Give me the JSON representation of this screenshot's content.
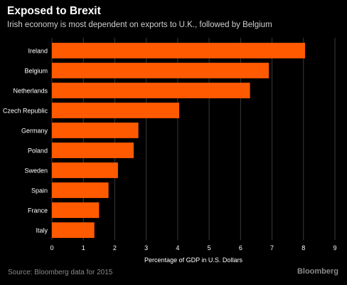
{
  "header": {
    "title": "Exposed to Brexit",
    "subtitle": "Irish economy is most dependent on exports to U.K., followed by Belgium"
  },
  "footer": {
    "source": "Source: Bloomberg data for 2015",
    "brand": "Bloomberg"
  },
  "colors": {
    "bar": "#ff5a00",
    "background": "#000000",
    "gridline": "#3a3a3a",
    "text": "#ffffff"
  },
  "chart_data": {
    "type": "bar",
    "orientation": "horizontal",
    "title": "Exposed to Brexit",
    "subtitle": "Irish economy is most dependent on exports to U.K., followed by Belgium",
    "xlabel": "Percentage of GDP in U.S. Dollars",
    "ylabel": "",
    "categories": [
      "Ireland",
      "Belgium",
      "Netherlands",
      "Czech Republic",
      "Germany",
      "Poland",
      "Sweden",
      "Spain",
      "France",
      "Italy"
    ],
    "values": [
      8.05,
      6.9,
      6.3,
      4.05,
      2.75,
      2.6,
      2.1,
      1.8,
      1.5,
      1.35
    ],
    "xlim": [
      0,
      9
    ],
    "xticks": [
      0,
      1,
      2,
      3,
      4,
      5,
      6,
      7,
      8,
      9
    ],
    "grid": true,
    "legend": "none"
  }
}
